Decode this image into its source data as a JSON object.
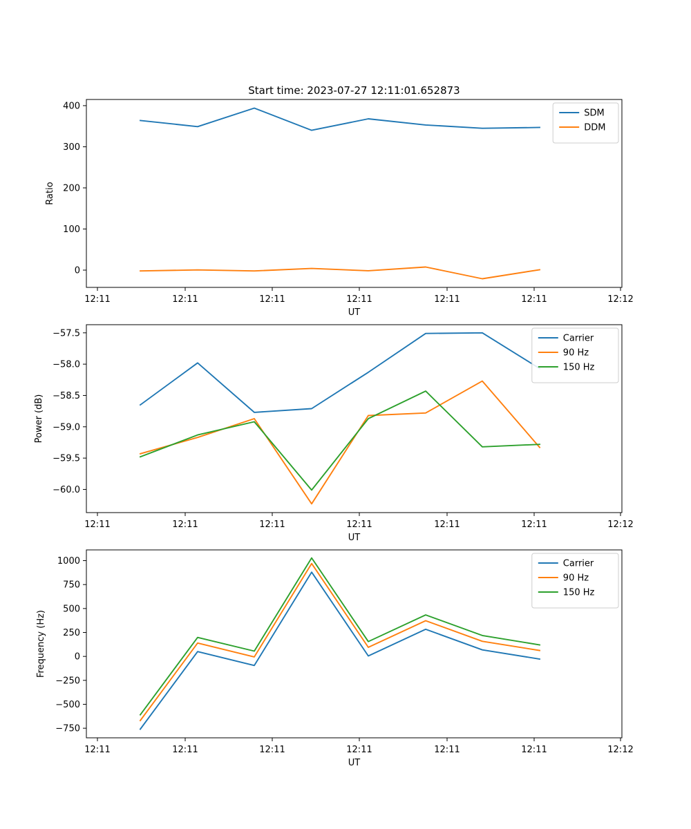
{
  "chart_data": [
    {
      "type": "line",
      "title": "Start time: 2023-07-27 12:11:01.652873",
      "xlabel": "UT",
      "ylabel": "Ratio",
      "xticks": [
        "12:11",
        "12:11",
        "12:11",
        "12:11",
        "12:11",
        "12:11",
        "12:12"
      ],
      "yticks": [
        0,
        100,
        200,
        300,
        400
      ],
      "ytick_labels": [
        "0",
        "100",
        "200",
        "300",
        "400"
      ],
      "ylim": [
        -42,
        415
      ],
      "legend": "top-right",
      "series": [
        {
          "name": "SDM",
          "color": "#1f77b4",
          "values": [
            364,
            349,
            394,
            340,
            368,
            353,
            345,
            347
          ]
        },
        {
          "name": "DDM",
          "color": "#ff7f0e",
          "values": [
            -2,
            0.5,
            -2,
            4,
            -1.5,
            7.5,
            -21,
            1
          ]
        }
      ]
    },
    {
      "type": "line",
      "title": "",
      "xlabel": "UT",
      "ylabel": "Power (dB)",
      "xticks": [
        "12:11",
        "12:11",
        "12:11",
        "12:11",
        "12:11",
        "12:11",
        "12:12"
      ],
      "yticks": [
        -57.5,
        -58.0,
        -58.5,
        -59.0,
        -59.5,
        -60.0
      ],
      "ytick_labels": [
        "−57.5",
        "−58.0",
        "−58.5",
        "−59.0",
        "−59.5",
        "−60.0"
      ],
      "ylim": [
        -60.37,
        -57.37
      ],
      "legend": "top-right",
      "series": [
        {
          "name": "Carrier",
          "color": "#1f77b4",
          "values": [
            -58.65,
            -57.98,
            -58.77,
            -58.71,
            -58.13,
            -57.51,
            -57.5,
            -58.07
          ]
        },
        {
          "name": "90 Hz",
          "color": "#ff7f0e",
          "values": [
            -59.43,
            -59.17,
            -58.87,
            -60.23,
            -58.82,
            -58.78,
            -58.27,
            -59.33
          ]
        },
        {
          "name": "150 Hz",
          "color": "#2ca02c",
          "values": [
            -59.48,
            -59.13,
            -58.92,
            -60.01,
            -58.87,
            -58.43,
            -59.32,
            -59.28
          ]
        }
      ]
    },
    {
      "type": "line",
      "title": "",
      "xlabel": "UT",
      "ylabel": "Frequency (Hz)",
      "xticks": [
        "12:11",
        "12:11",
        "12:11",
        "12:11",
        "12:11",
        "12:11",
        "12:12"
      ],
      "yticks": [
        1000,
        750,
        500,
        250,
        0,
        -250,
        -500,
        -750
      ],
      "ytick_labels": [
        "1000",
        "750",
        "500",
        "250",
        "0",
        "−250",
        "−500",
        "−750"
      ],
      "ylim": [
        -850,
        1112
      ],
      "legend": "top-right",
      "series": [
        {
          "name": "Carrier",
          "color": "#1f77b4",
          "values": [
            -760,
            50,
            -95,
            880,
            5,
            283,
            68,
            -28
          ]
        },
        {
          "name": "90 Hz",
          "color": "#ff7f0e",
          "values": [
            -670,
            140,
            -5,
            970,
            95,
            373,
            158,
            62
          ]
        },
        {
          "name": "150 Hz",
          "color": "#2ca02c",
          "values": [
            -610,
            198,
            55,
            1028,
            155,
            433,
            218,
            120
          ]
        }
      ]
    }
  ]
}
